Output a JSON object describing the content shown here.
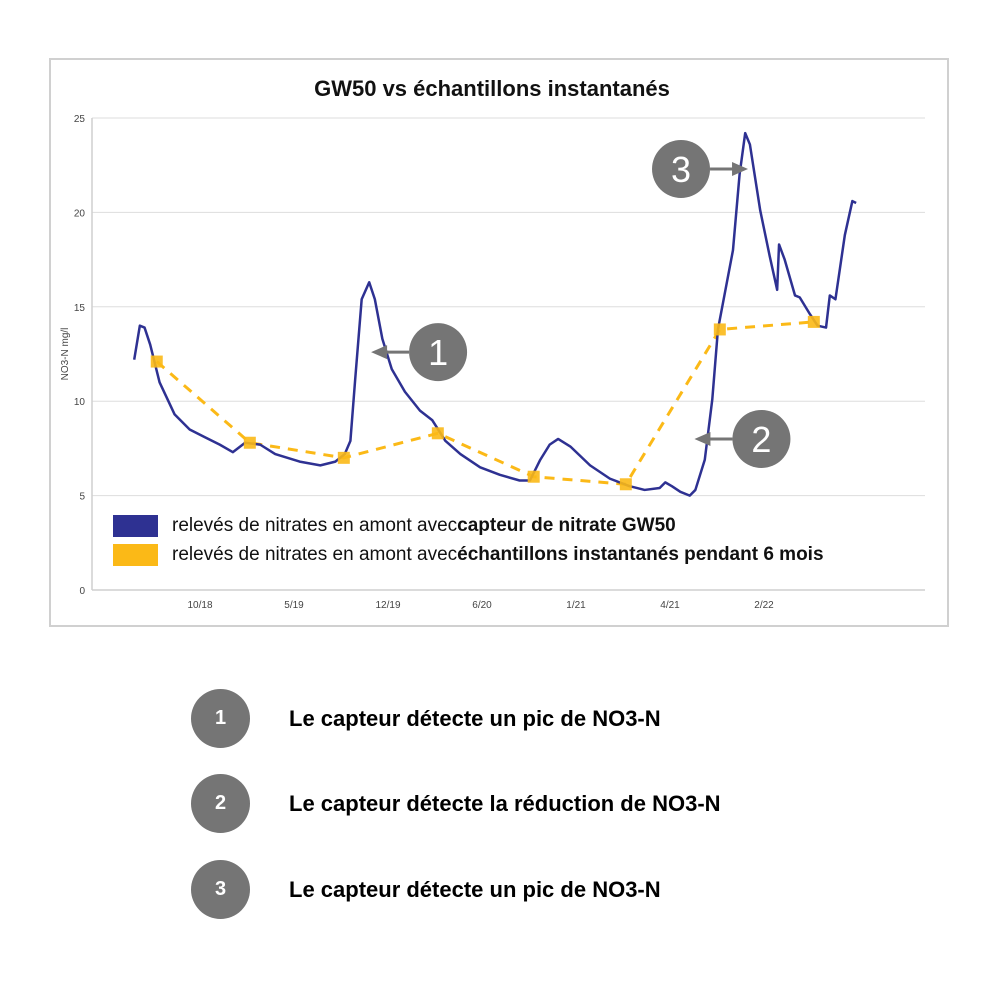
{
  "colors": {
    "sensor": "#2e3192",
    "grab": "#fbb917",
    "annotation": "#757575",
    "grid": "#dddddd"
  },
  "chart_data": {
    "type": "line",
    "title": "GW50 vs échantillons instantanés",
    "ylabel": "NO3-N mg/l",
    "xlabel": "",
    "ylim": [
      0,
      25
    ],
    "yticks": [
      0,
      5,
      10,
      15,
      20,
      25
    ],
    "xtick_labels": [
      "10/18",
      "5/19",
      "12/19",
      "6/20",
      "1/21",
      "4/21",
      "2/22"
    ],
    "grid": true,
    "legend_placement": "bottom-left inside",
    "series": [
      {
        "name": "relevés de nitrates en amont avec capteur de nitrate GW50",
        "legend_plain": "relevés de nitrates en amont avec ",
        "legend_bold": "capteur de nitrate GW50",
        "style": "solid",
        "points": [
          [
            -0.7,
            12.2
          ],
          [
            -0.64,
            14.0
          ],
          [
            -0.59,
            13.9
          ],
          [
            -0.53,
            13.0
          ],
          [
            -0.43,
            11.0
          ],
          [
            -0.27,
            9.3
          ],
          [
            -0.11,
            8.5
          ],
          [
            0.05,
            8.1
          ],
          [
            0.21,
            7.7
          ],
          [
            0.35,
            7.3
          ],
          [
            0.48,
            7.8
          ],
          [
            0.64,
            7.7
          ],
          [
            0.8,
            7.2
          ],
          [
            1.06,
            6.8
          ],
          [
            1.28,
            6.6
          ],
          [
            1.44,
            6.8
          ],
          [
            1.54,
            7.2
          ],
          [
            1.6,
            7.9
          ],
          [
            1.65,
            11.1
          ],
          [
            1.72,
            15.4
          ],
          [
            1.8,
            16.3
          ],
          [
            1.86,
            15.4
          ],
          [
            1.94,
            13.3
          ],
          [
            2.04,
            11.7
          ],
          [
            2.18,
            10.5
          ],
          [
            2.34,
            9.5
          ],
          [
            2.47,
            9.0
          ],
          [
            2.61,
            7.9
          ],
          [
            2.77,
            7.2
          ],
          [
            2.98,
            6.5
          ],
          [
            3.19,
            6.1
          ],
          [
            3.4,
            5.8
          ],
          [
            3.51,
            5.8
          ],
          [
            3.62,
            6.9
          ],
          [
            3.72,
            7.7
          ],
          [
            3.81,
            8.0
          ],
          [
            3.94,
            7.6
          ],
          [
            4.15,
            6.6
          ],
          [
            4.36,
            5.9
          ],
          [
            4.57,
            5.5
          ],
          [
            4.73,
            5.3
          ],
          [
            4.89,
            5.4
          ],
          [
            4.95,
            5.7
          ],
          [
            5.02,
            5.5
          ],
          [
            5.11,
            5.2
          ],
          [
            5.21,
            5.0
          ],
          [
            5.27,
            5.3
          ],
          [
            5.37,
            6.9
          ],
          [
            5.45,
            10.1
          ],
          [
            5.51,
            13.8
          ],
          [
            5.59,
            15.9
          ],
          [
            5.67,
            18.0
          ],
          [
            5.74,
            22.0
          ],
          [
            5.8,
            24.2
          ],
          [
            5.85,
            23.6
          ],
          [
            5.96,
            20.1
          ],
          [
            6.06,
            17.7
          ],
          [
            6.14,
            15.9
          ],
          [
            6.16,
            18.3
          ],
          [
            6.22,
            17.5
          ],
          [
            6.33,
            15.6
          ],
          [
            6.38,
            15.5
          ],
          [
            6.49,
            14.6
          ],
          [
            6.57,
            14.0
          ],
          [
            6.66,
            13.9
          ],
          [
            6.7,
            15.6
          ],
          [
            6.76,
            15.4
          ],
          [
            6.86,
            18.8
          ],
          [
            6.94,
            20.6
          ],
          [
            6.98,
            20.5
          ]
        ]
      },
      {
        "name": "relevés de nitrates en amont avec échantillons instantanés pendant 6 mois",
        "legend_plain": "relevés de nitrates en amont avec ",
        "legend_bold": "échantillons instantanés pendant 6 mois",
        "style": "dashed-with-square-markers",
        "points": [
          [
            -0.46,
            12.1
          ],
          [
            0.53,
            7.8
          ],
          [
            1.53,
            7.0
          ],
          [
            2.53,
            8.3
          ],
          [
            3.55,
            6.0
          ],
          [
            4.53,
            5.6
          ],
          [
            5.53,
            13.8
          ],
          [
            6.53,
            14.2
          ]
        ]
      }
    ],
    "annotations": [
      {
        "label": "1",
        "x": 1.82,
        "y": 12.6,
        "direction": "left"
      },
      {
        "label": "2",
        "x": 5.26,
        "y": 8.0,
        "direction": "left"
      },
      {
        "label": "3",
        "x": 5.83,
        "y": 22.3,
        "direction": "right"
      }
    ]
  },
  "notes": [
    {
      "number": "1",
      "text": "Le capteur détecte un pic de NO3-N"
    },
    {
      "number": "2",
      "text": "Le capteur détecte la réduction de NO3-N"
    },
    {
      "number": "3",
      "text": "Le capteur détecte un pic de NO3-N"
    }
  ]
}
